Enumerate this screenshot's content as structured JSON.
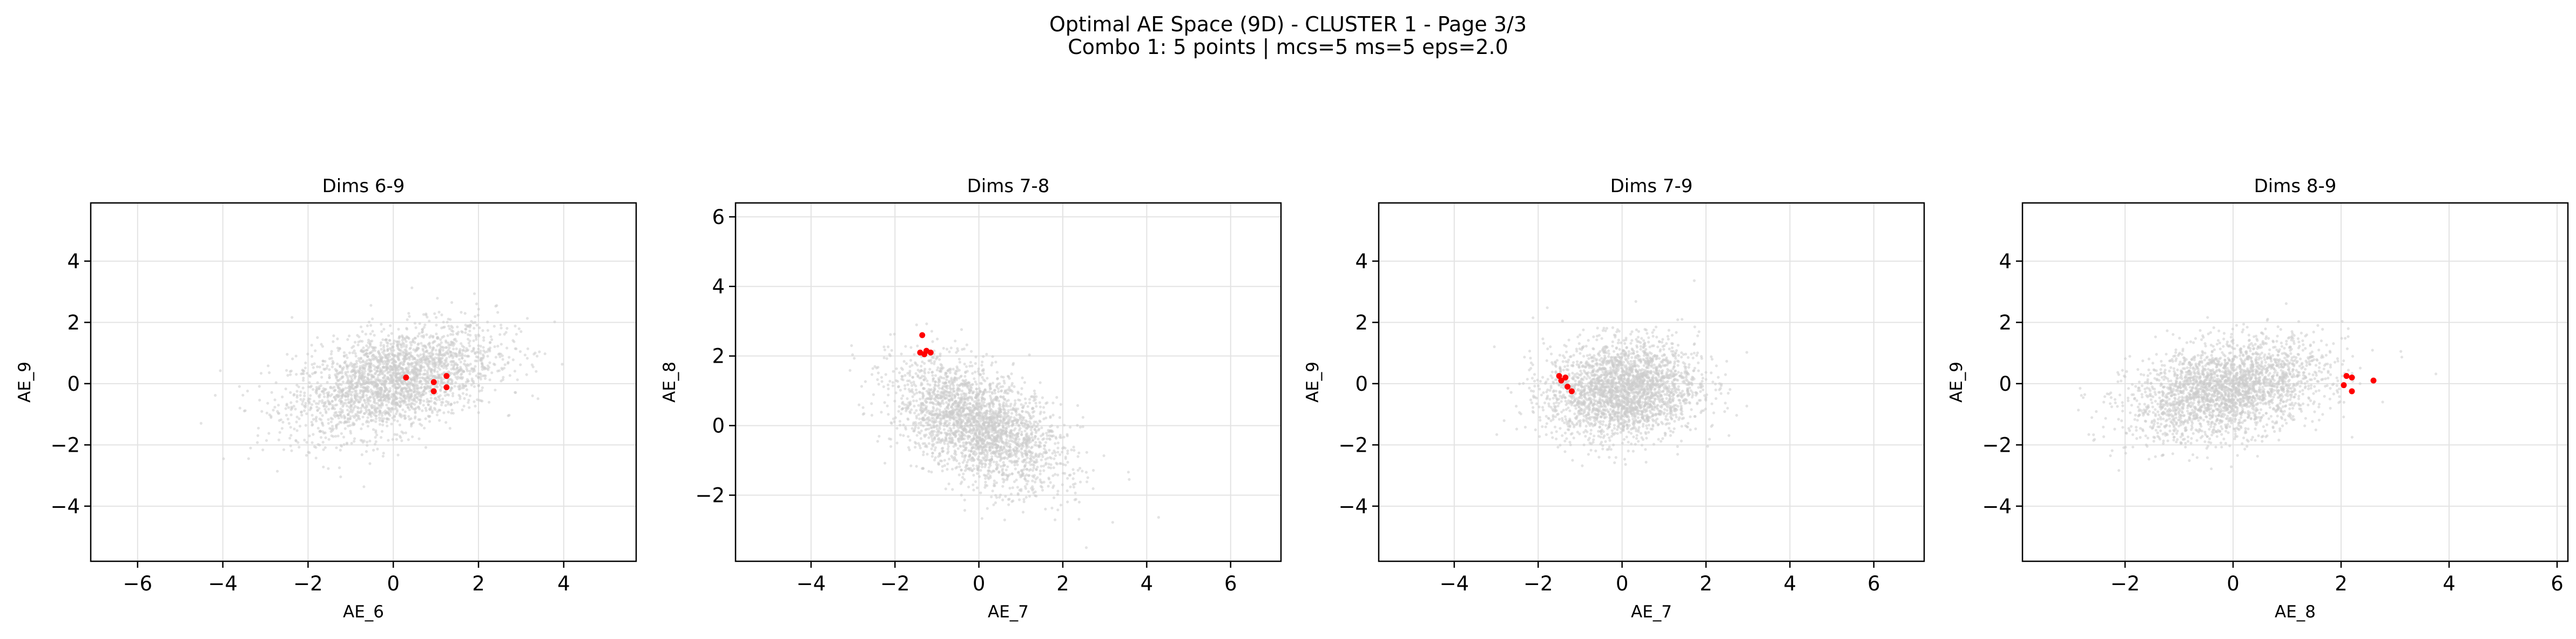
{
  "figure": {
    "title_line1": "Optimal AE Space (9D) - CLUSTER 1 - Page 3/3",
    "title_line2": "Combo 1: 5 points | mcs=5 ms=5 eps=2.0"
  },
  "colors": {
    "background_points": "#cccccc",
    "cluster_points": "#ff0000",
    "grid": "#e3e3e3",
    "axes": "#000000"
  },
  "chart_data": [
    {
      "type": "scatter",
      "title": "Dims 6-9",
      "xlabel": "AE_6",
      "ylabel": "AE_9",
      "xlim": [
        -7.1,
        5.7
      ],
      "ylim": [
        -5.8,
        5.9
      ],
      "xticks": [
        -6,
        -4,
        -2,
        0,
        2,
        4
      ],
      "yticks": [
        -4,
        -2,
        0,
        2,
        4
      ],
      "grid": true,
      "background": {
        "cx": 0.0,
        "cy": 0.1,
        "sx": 1.2,
        "sy": 0.9,
        "rho": 0.45
      },
      "cluster_points": [
        [
          0.3,
          0.2
        ],
        [
          0.95,
          0.05
        ],
        [
          1.25,
          0.25
        ],
        [
          0.95,
          -0.25
        ],
        [
          1.25,
          -0.12
        ]
      ]
    },
    {
      "type": "scatter",
      "title": "Dims 7-8",
      "xlabel": "AE_7",
      "ylabel": "AE_8",
      "xlim": [
        -5.8,
        7.2
      ],
      "ylim": [
        -3.9,
        6.4
      ],
      "xticks": [
        -4,
        -2,
        0,
        2,
        4,
        6
      ],
      "yticks": [
        -2,
        0,
        2,
        4,
        6
      ],
      "grid": true,
      "background": {
        "cx": 0.0,
        "cy": 0.0,
        "sx": 1.0,
        "sy": 0.9,
        "rho": -0.5
      },
      "cluster_points": [
        [
          -1.35,
          2.6
        ],
        [
          -1.4,
          2.1
        ],
        [
          -1.25,
          2.15
        ],
        [
          -1.15,
          2.1
        ],
        [
          -1.3,
          2.05
        ]
      ]
    },
    {
      "type": "scatter",
      "title": "Dims 7-9",
      "xlabel": "AE_7",
      "ylabel": "AE_9",
      "xlim": [
        -5.8,
        7.2
      ],
      "ylim": [
        -5.8,
        5.9
      ],
      "xticks": [
        -4,
        -2,
        0,
        2,
        4,
        6
      ],
      "yticks": [
        -4,
        -2,
        0,
        2,
        4
      ],
      "grid": true,
      "background": {
        "cx": 0.0,
        "cy": -0.2,
        "sx": 0.9,
        "sy": 0.8,
        "rho": 0.1
      },
      "cluster_points": [
        [
          -1.5,
          0.25
        ],
        [
          -1.45,
          0.1
        ],
        [
          -1.35,
          0.2
        ],
        [
          -1.3,
          -0.1
        ],
        [
          -1.2,
          -0.25
        ]
      ]
    },
    {
      "type": "scatter",
      "title": "Dims 8-9",
      "xlabel": "AE_8",
      "ylabel": "AE_9",
      "xlim": [
        -3.9,
        6.2
      ],
      "ylim": [
        -5.8,
        5.9
      ],
      "xticks": [
        -2,
        0,
        2,
        4,
        6
      ],
      "yticks": [
        -4,
        -2,
        0,
        2,
        4
      ],
      "grid": true,
      "background": {
        "cx": -0.1,
        "cy": -0.2,
        "sx": 0.9,
        "sy": 0.8,
        "rho": 0.35
      },
      "cluster_points": [
        [
          2.1,
          0.25
        ],
        [
          2.2,
          0.2
        ],
        [
          2.6,
          0.1
        ],
        [
          2.05,
          -0.05
        ],
        [
          2.2,
          -0.25
        ]
      ]
    }
  ]
}
